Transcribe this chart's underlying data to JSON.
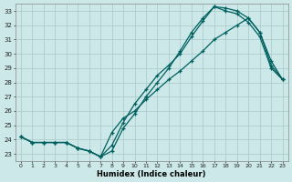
{
  "xlabel": "Humidex (Indice chaleur)",
  "ylabel": "",
  "bg_color": "#cce8e8",
  "grid_color": "#b0d0d0",
  "line_color": "#006060",
  "xlim": [
    -0.5,
    23.5
  ],
  "ylim": [
    22.5,
    33.5
  ],
  "yticks": [
    23,
    24,
    25,
    26,
    27,
    28,
    29,
    30,
    31,
    32,
    33
  ],
  "xticks": [
    0,
    1,
    2,
    3,
    4,
    5,
    6,
    7,
    8,
    9,
    10,
    11,
    12,
    13,
    14,
    15,
    16,
    17,
    18,
    19,
    20,
    21,
    22,
    23
  ],
  "line1_x": [
    0,
    1,
    2,
    3,
    4,
    5,
    6,
    7,
    8,
    9,
    10,
    11,
    12,
    13,
    14,
    15,
    16,
    17,
    18,
    19,
    20,
    21,
    22,
    23
  ],
  "line1_y": [
    24.2,
    23.8,
    23.8,
    23.8,
    23.8,
    23.4,
    23.2,
    22.8,
    23.2,
    24.8,
    25.8,
    27.0,
    28.0,
    29.0,
    30.2,
    31.5,
    32.5,
    33.3,
    33.2,
    33.0,
    32.5,
    31.5,
    29.2,
    28.2
  ],
  "line2_x": [
    0,
    1,
    2,
    3,
    4,
    5,
    6,
    7,
    8,
    9,
    10,
    11,
    12,
    13,
    14,
    15,
    16,
    17,
    18,
    19,
    20,
    21,
    22,
    23
  ],
  "line2_y": [
    24.2,
    23.8,
    23.8,
    23.8,
    23.8,
    23.4,
    23.2,
    22.8,
    23.6,
    25.2,
    26.5,
    27.5,
    28.5,
    29.2,
    30.0,
    31.2,
    32.3,
    33.3,
    33.0,
    32.8,
    32.2,
    31.2,
    29.0,
    28.2
  ],
  "line3_x": [
    0,
    1,
    2,
    3,
    4,
    5,
    6,
    7,
    8,
    9,
    10,
    11,
    12,
    13,
    14,
    15,
    16,
    17,
    18,
    19,
    20,
    21,
    22,
    23
  ],
  "line3_y": [
    24.2,
    23.8,
    23.8,
    23.8,
    23.8,
    23.4,
    23.2,
    22.8,
    24.5,
    25.5,
    26.0,
    26.8,
    27.5,
    28.2,
    28.8,
    29.5,
    30.2,
    31.0,
    31.5,
    32.0,
    32.5,
    31.5,
    29.5,
    28.2
  ]
}
